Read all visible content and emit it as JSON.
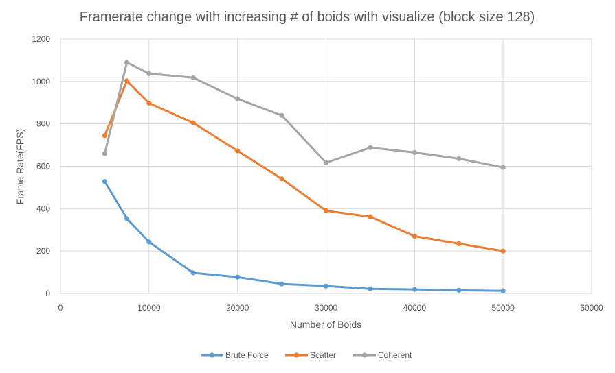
{
  "chart_data": {
    "type": "line",
    "title": "Framerate change with increasing # of boids with visualize (block size  128)",
    "xlabel": "Number of Boids",
    "ylabel": "Frame Rate(FPS)",
    "xlim": [
      0,
      60000
    ],
    "ylim": [
      0,
      1200
    ],
    "xticks": [
      0,
      10000,
      20000,
      30000,
      40000,
      50000,
      60000
    ],
    "yticks": [
      0,
      200,
      400,
      600,
      800,
      1000,
      1200
    ],
    "grid": true,
    "legend_position": "bottom",
    "x": [
      5000,
      7500,
      10000,
      15000,
      20000,
      25000,
      30000,
      35000,
      40000,
      45000,
      50000
    ],
    "series": [
      {
        "name": "Brute Force",
        "color": "#5b9bd5",
        "values": [
          528,
          353,
          243,
          97,
          77,
          45,
          35,
          22,
          19,
          15,
          12
        ]
      },
      {
        "name": "Scatter",
        "color": "#ed7d31",
        "values": [
          745,
          1003,
          898,
          805,
          673,
          541,
          390,
          362,
          270,
          235,
          200
        ]
      },
      {
        "name": "Coherent",
        "color": "#a5a5a5",
        "values": [
          660,
          1090,
          1037,
          1018,
          918,
          840,
          617,
          688,
          665,
          636,
          595
        ]
      }
    ]
  }
}
